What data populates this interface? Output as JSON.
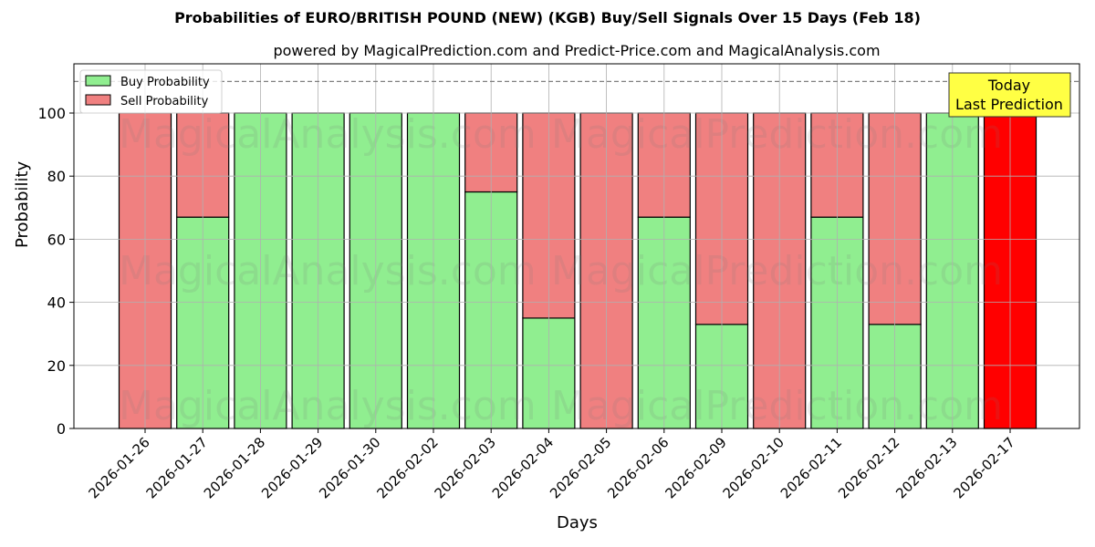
{
  "chart_data": {
    "type": "bar",
    "stacked": true,
    "title": "Probabilities of EURO/BRITISH POUND (NEW) (KGB) Buy/Sell Signals Over 15 Days (Feb 18)",
    "subtitle": "powered by MagicalPrediction.com and Predict-Price.com and MagicalAnalysis.com",
    "xlabel": "Days",
    "ylabel": "Probability",
    "ylim": [
      0,
      115
    ],
    "yticks": [
      0,
      20,
      40,
      60,
      80,
      100
    ],
    "grid": true,
    "legend_position": "upper left",
    "categories": [
      "2026-01-26",
      "2026-01-27",
      "2026-01-28",
      "2026-01-29",
      "2026-01-30",
      "2026-02-02",
      "2026-02-03",
      "2026-02-04",
      "2026-02-05",
      "2026-02-06",
      "2026-02-09",
      "2026-02-10",
      "2026-02-11",
      "2026-02-12",
      "2026-02-13",
      "2026-02-17"
    ],
    "series": [
      {
        "name": "Buy Probability",
        "color": "#90ee90",
        "values": [
          0,
          67,
          100,
          100,
          100,
          100,
          75,
          35,
          0,
          67,
          33,
          0,
          67,
          33,
          100,
          0
        ]
      },
      {
        "name": "Sell Probability",
        "color": "#f08080",
        "values": [
          100,
          33,
          0,
          0,
          0,
          0,
          25,
          65,
          100,
          33,
          67,
          100,
          33,
          67,
          0,
          100
        ]
      }
    ],
    "highlight": {
      "index": 15,
      "color": "#ff0000"
    },
    "reference_line": {
      "y": 110,
      "style": "dashed",
      "color": "#808080"
    },
    "annotation": {
      "text_line1": "Today",
      "text_line2": "Last Prediction",
      "background": "#ffff44"
    },
    "watermarks": [
      "MagicalAnalysis.com",
      "MagicalPrediction.com"
    ]
  }
}
